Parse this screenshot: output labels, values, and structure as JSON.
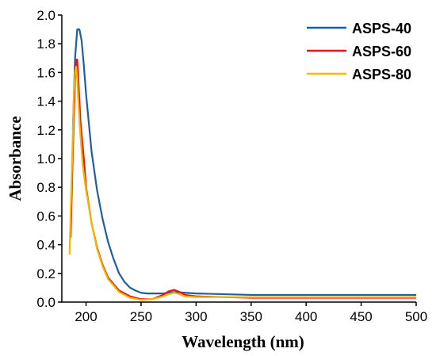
{
  "chart_data": {
    "type": "line",
    "title": "",
    "xlabel": "Wavelength (nm)",
    "ylabel": "Absorbance",
    "xlim": [
      178,
      500
    ],
    "ylim": [
      0,
      2.0
    ],
    "x_ticks": [
      200,
      250,
      300,
      350,
      400,
      450,
      500
    ],
    "y_ticks": [
      0.0,
      0.2,
      0.4,
      0.6,
      0.8,
      1.0,
      1.2,
      1.4,
      1.6,
      1.8,
      2.0
    ],
    "x_tick_labels": [
      "200",
      "250",
      "300",
      "350",
      "400",
      "450",
      "500"
    ],
    "y_tick_labels": [
      "0.0",
      "0.2",
      "0.4",
      "0.6",
      "0.8",
      "1.0",
      "1.2",
      "1.4",
      "1.6",
      "1.8",
      "2.0"
    ],
    "legend_position": "top-right",
    "grid": false,
    "series": [
      {
        "name": "ASPS-40",
        "color": "#1f5fa0",
        "x": [
          188,
          190,
          192,
          194,
          196,
          198,
          200,
          205,
          210,
          215,
          220,
          225,
          230,
          235,
          240,
          245,
          250,
          255,
          260,
          270,
          280,
          290,
          300,
          350,
          400,
          450,
          500
        ],
        "y": [
          1.2,
          1.7,
          1.9,
          1.9,
          1.82,
          1.65,
          1.45,
          1.05,
          0.78,
          0.58,
          0.42,
          0.3,
          0.2,
          0.14,
          0.1,
          0.08,
          0.065,
          0.06,
          0.06,
          0.06,
          0.07,
          0.065,
          0.06,
          0.05,
          0.05,
          0.05,
          0.05
        ]
      },
      {
        "name": "ASPS-60",
        "color": "#e8141c",
        "x": [
          186,
          188,
          190,
          191,
          192,
          193,
          195,
          198,
          200,
          205,
          210,
          215,
          220,
          230,
          240,
          250,
          260,
          270,
          275,
          280,
          285,
          290,
          300,
          350,
          400,
          450,
          500
        ],
        "y": [
          0.45,
          1.05,
          1.55,
          1.69,
          1.69,
          1.55,
          1.25,
          1.0,
          0.8,
          0.55,
          0.38,
          0.26,
          0.17,
          0.08,
          0.04,
          0.02,
          0.02,
          0.05,
          0.075,
          0.085,
          0.07,
          0.05,
          0.04,
          0.03,
          0.03,
          0.03,
          0.03
        ]
      },
      {
        "name": "ASPS-80",
        "color": "#f5b800",
        "x": [
          185,
          187,
          189,
          190,
          191,
          192,
          194,
          197,
          200,
          205,
          210,
          215,
          220,
          230,
          240,
          250,
          260,
          270,
          275,
          280,
          285,
          290,
          300,
          350,
          400,
          450,
          500
        ],
        "y": [
          0.33,
          0.9,
          1.45,
          1.6,
          1.64,
          1.55,
          1.25,
          0.95,
          0.78,
          0.55,
          0.37,
          0.25,
          0.16,
          0.07,
          0.03,
          0.015,
          0.02,
          0.04,
          0.055,
          0.065,
          0.055,
          0.04,
          0.035,
          0.035,
          0.035,
          0.035,
          0.035
        ]
      }
    ]
  }
}
